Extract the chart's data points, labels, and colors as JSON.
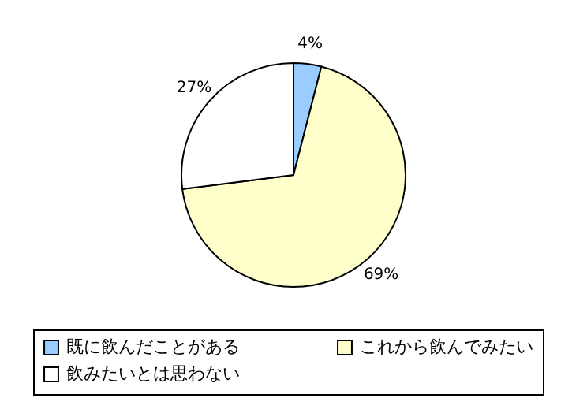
{
  "chart_data": {
    "type": "pie",
    "categories": [
      "既に飲んだことがある",
      "これから飲んでみたい",
      "飲みたいとは思わない"
    ],
    "values": [
      4,
      69,
      27
    ],
    "colors": [
      "#99ccff",
      "#ffffcc",
      "#ffffff"
    ],
    "value_labels": [
      "4%",
      "69%",
      "27%"
    ],
    "legend": "bottom"
  }
}
